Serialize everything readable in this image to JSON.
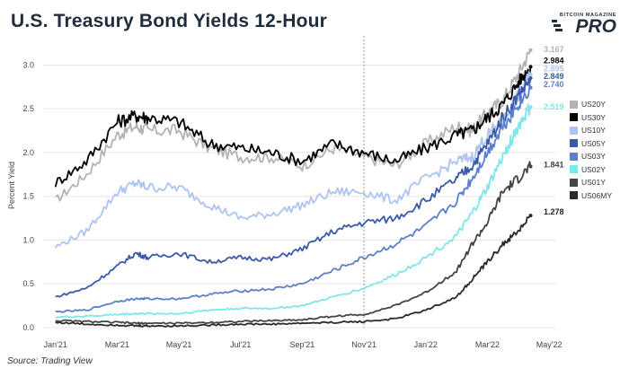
{
  "header": {
    "title": "U.S. Treasury Bond Yields 12-Hour"
  },
  "brand": {
    "top": "BITCOIN MAGAZINE",
    "main": "PRO"
  },
  "footer": {
    "source": "Source: Trading View"
  },
  "chart_data": {
    "type": "line",
    "title": "U.S. Treasury Bond Yields 12-Hour",
    "xlabel": "",
    "ylabel": "Percent Yield",
    "ylim": [
      0,
      3.25
    ],
    "yticks": [
      0.0,
      0.5,
      1.0,
      1.5,
      2.0,
      2.5,
      3.0
    ],
    "ytick_labels": [
      "0.0",
      "0.5",
      "1.0",
      "1.5",
      "2.0",
      "2.5",
      "3.0"
    ],
    "xlim": [
      0,
      16
    ],
    "xticks": [
      0.4,
      2.4,
      4.4,
      6.4,
      8.4,
      10.4,
      12.4,
      14.4,
      16.4
    ],
    "xtick_labels": [
      "Jan'21",
      "Mar'21",
      "May'21",
      "Jul'21",
      "Sep'21",
      "Nov'21",
      "Jan'22",
      "Mar'22",
      "May'22"
    ],
    "vline": 10.4,
    "x": [
      0.4,
      1.4,
      2.4,
      3.0,
      3.4,
      4.4,
      5.4,
      6.4,
      7.4,
      8.4,
      9.4,
      10.4,
      11.4,
      12.4,
      13.4,
      13.9,
      14.4,
      14.9,
      15.4,
      15.8
    ],
    "series": [
      {
        "name": "US20Y",
        "color": "#b3b3b3",
        "values": [
          1.45,
          1.75,
          2.2,
          2.3,
          2.25,
          2.25,
          2.05,
          1.95,
          1.95,
          1.85,
          2.05,
          1.95,
          1.85,
          2.1,
          2.3,
          2.25,
          2.45,
          2.6,
          2.9,
          3.17
        ],
        "end_label": "3.167",
        "label_color": "#b3b3b3"
      },
      {
        "name": "US30Y",
        "color": "#000000",
        "values": [
          1.65,
          1.9,
          2.35,
          2.42,
          2.4,
          2.35,
          2.1,
          2.05,
          2.0,
          1.9,
          2.1,
          2.0,
          1.9,
          2.05,
          2.2,
          2.25,
          2.4,
          2.55,
          2.8,
          2.98
        ],
        "end_label": "2.984",
        "label_color": "#000000"
      },
      {
        "name": "US10Y",
        "color": "#aec4f0",
        "values": [
          0.92,
          1.1,
          1.55,
          1.65,
          1.6,
          1.6,
          1.4,
          1.25,
          1.3,
          1.4,
          1.55,
          1.55,
          1.45,
          1.7,
          1.9,
          1.95,
          2.2,
          2.35,
          2.65,
          2.89
        ],
        "end_label": "2.895",
        "label_color": "#aec4f0"
      },
      {
        "name": "US05Y",
        "color": "#3a5aa8",
        "values": [
          0.35,
          0.45,
          0.7,
          0.85,
          0.8,
          0.85,
          0.75,
          0.8,
          0.78,
          0.9,
          1.1,
          1.2,
          1.25,
          1.45,
          1.7,
          1.85,
          2.1,
          2.4,
          2.65,
          2.85
        ],
        "end_label": "2.849",
        "label_color": "#3a5aa8"
      },
      {
        "name": "US03Y",
        "color": "#5d7fcc",
        "values": [
          0.18,
          0.2,
          0.3,
          0.33,
          0.33,
          0.33,
          0.38,
          0.42,
          0.44,
          0.5,
          0.65,
          0.8,
          0.95,
          1.15,
          1.45,
          1.7,
          2.0,
          2.3,
          2.55,
          2.74
        ],
        "end_label": "2.740",
        "label_color": "#5d7fcc"
      },
      {
        "name": "US02Y",
        "color": "#7fe6ea",
        "values": [
          0.12,
          0.13,
          0.15,
          0.16,
          0.16,
          0.16,
          0.2,
          0.22,
          0.22,
          0.25,
          0.35,
          0.45,
          0.6,
          0.8,
          1.05,
          1.3,
          1.6,
          1.95,
          2.3,
          2.52
        ],
        "end_label": "2.519",
        "label_color": "#7fe6ea"
      },
      {
        "name": "US01Y",
        "color": "#444444",
        "values": [
          0.08,
          0.07,
          0.06,
          0.05,
          0.05,
          0.05,
          0.06,
          0.07,
          0.08,
          0.09,
          0.13,
          0.15,
          0.25,
          0.4,
          0.65,
          0.95,
          1.2,
          1.55,
          1.7,
          1.84
        ],
        "end_label": "1.841",
        "label_color": "#444444"
      },
      {
        "name": "US06MY",
        "color": "#2a2a2a",
        "values": [
          0.06,
          0.04,
          0.03,
          0.02,
          0.02,
          0.02,
          0.03,
          0.04,
          0.04,
          0.05,
          0.06,
          0.07,
          0.1,
          0.2,
          0.35,
          0.55,
          0.75,
          0.95,
          1.1,
          1.28
        ],
        "end_label": "1.278",
        "label_color": "#222222"
      }
    ],
    "legend_position": "right"
  }
}
